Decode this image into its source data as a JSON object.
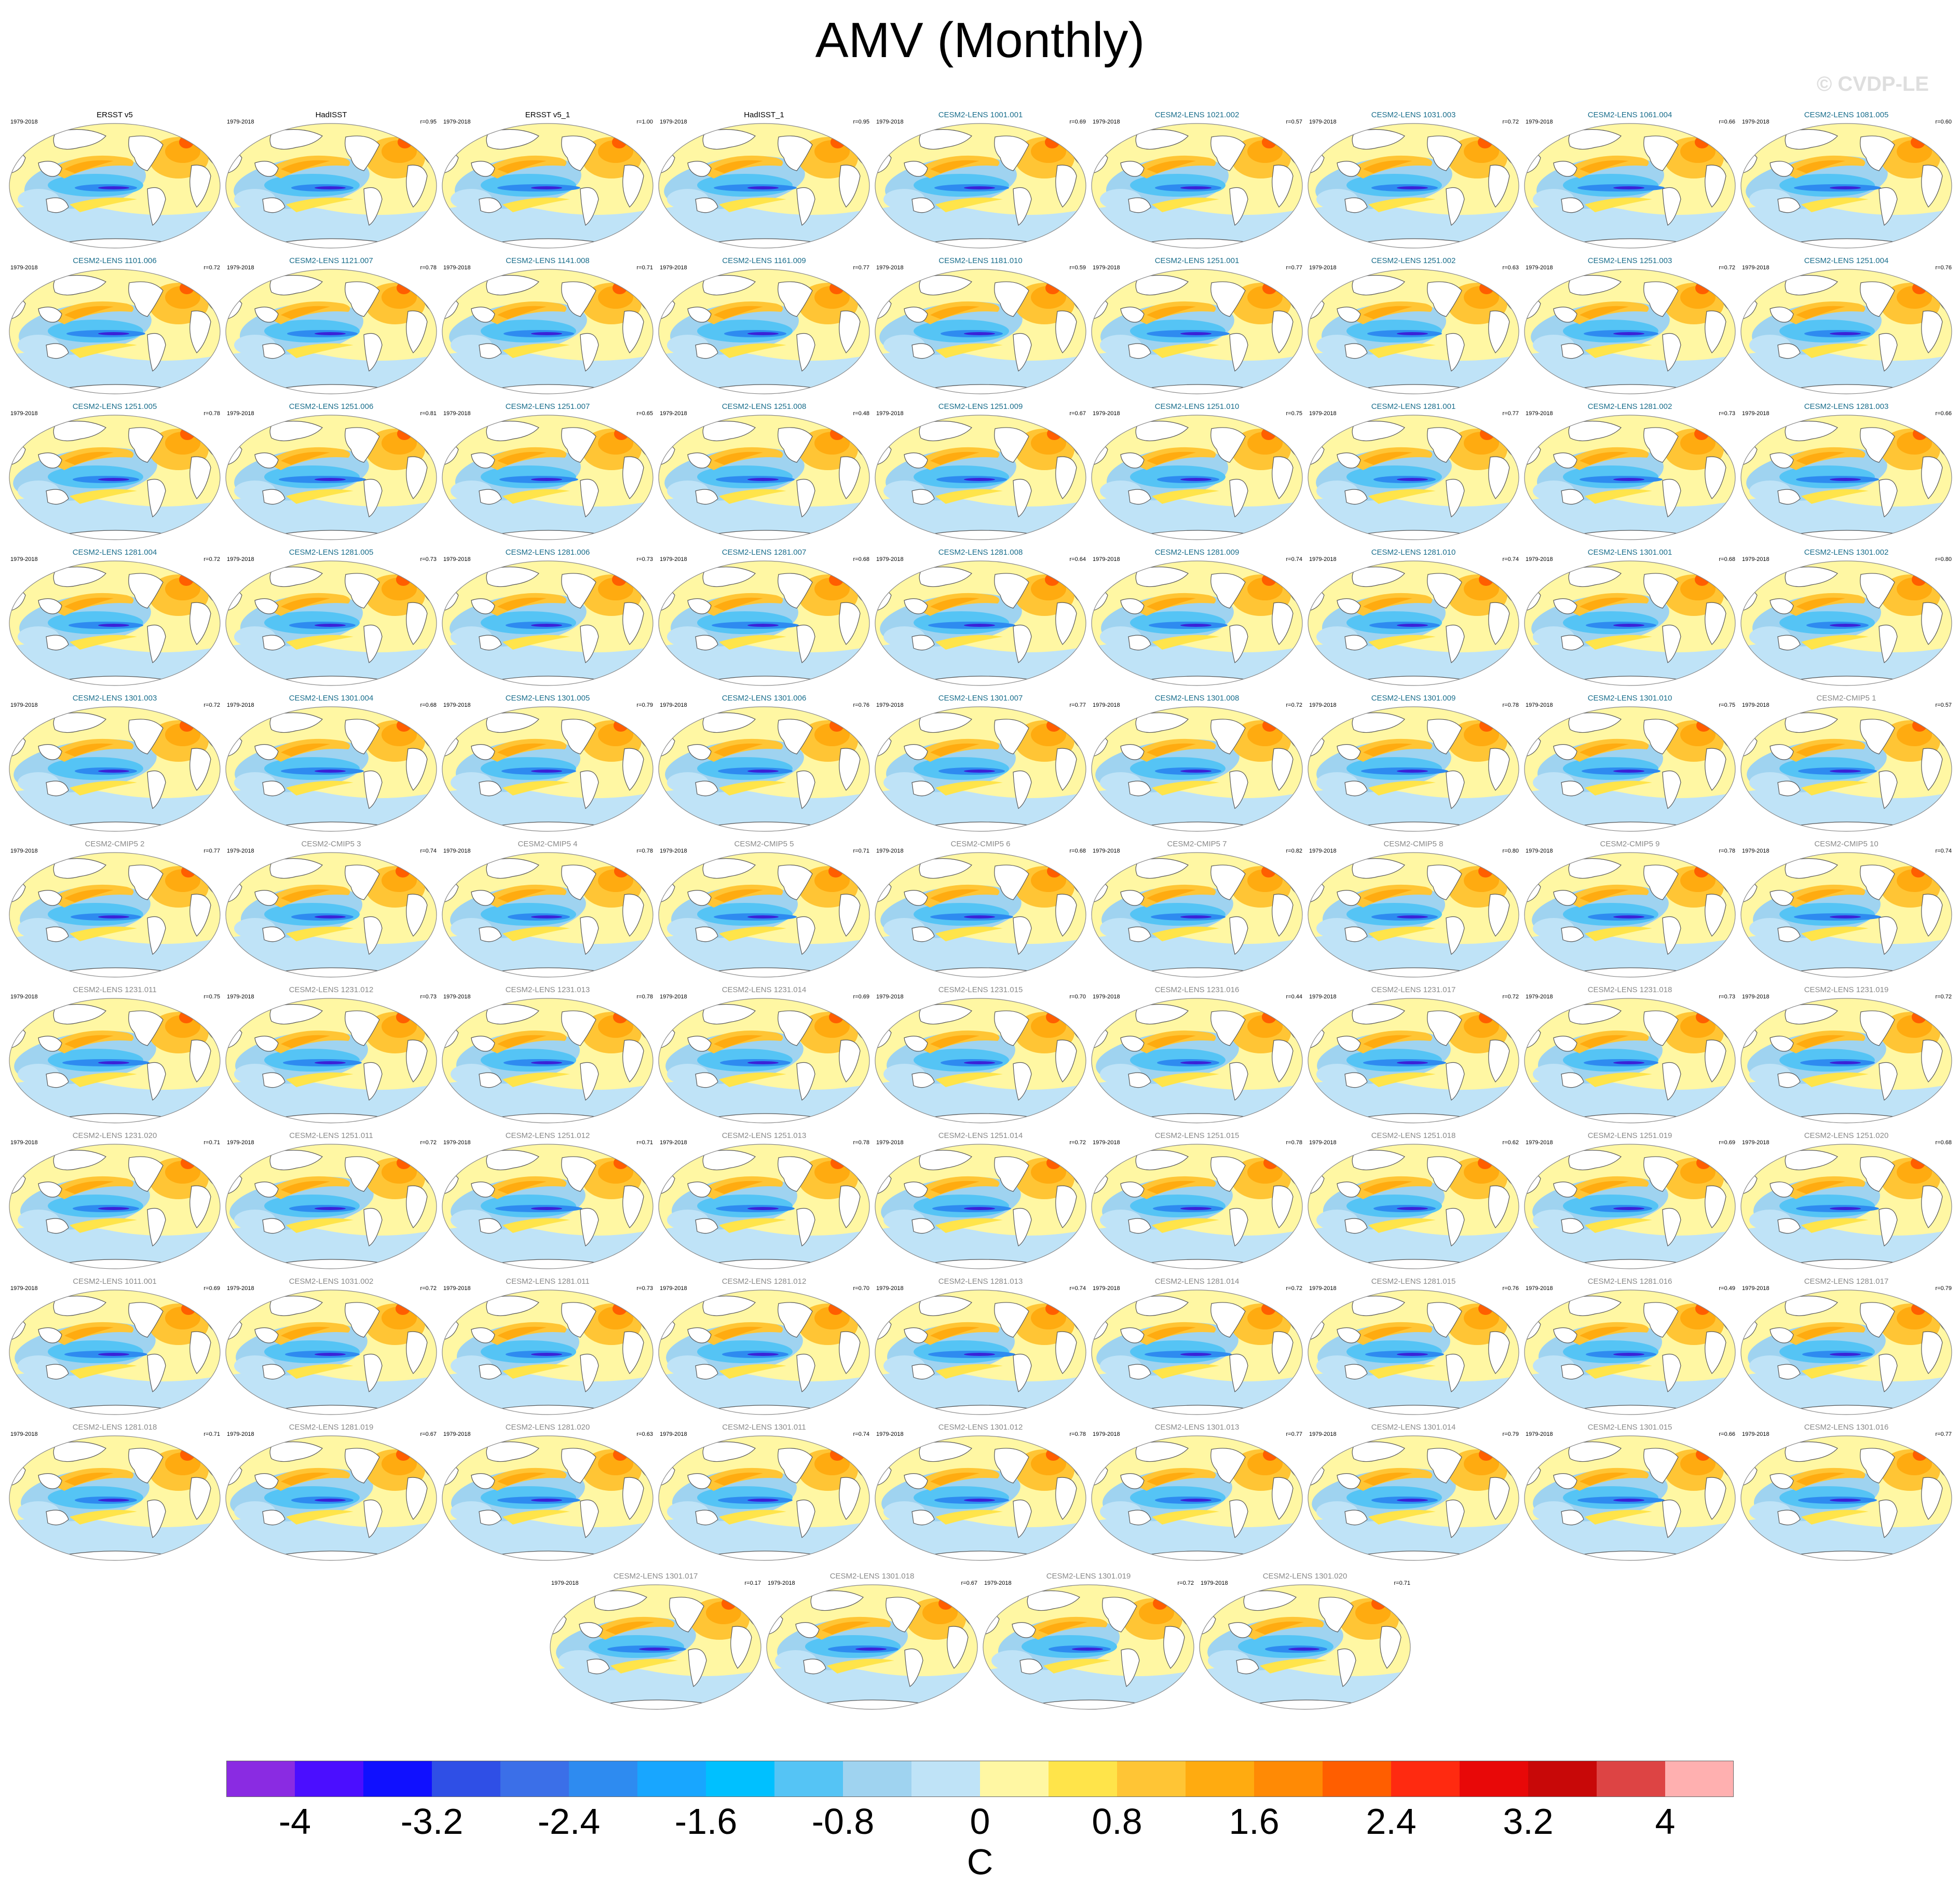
{
  "title": "AMV (Monthly)",
  "watermark": "© CVDP-LE",
  "period": "1979-2018",
  "colors": {
    "obs_title": "#000000",
    "model_title_group1": "#1a6e8c",
    "model_title_group2": "#8a8a8a",
    "land": "#ffffff",
    "coast": "#555555"
  },
  "panels": [
    {
      "name": "ERSST v5",
      "r": "",
      "group": "obs"
    },
    {
      "name": "HadISST",
      "r": "r=0.95",
      "group": "obs"
    },
    {
      "name": "ERSST v5_1",
      "r": "r=1.00",
      "group": "obs"
    },
    {
      "name": "HadISST_1",
      "r": "r=0.95",
      "group": "obs"
    },
    {
      "name": "CESM2-LENS 1001.001",
      "r": "r=0.69",
      "group": "m1"
    },
    {
      "name": "CESM2-LENS 1021.002",
      "r": "r=0.57",
      "group": "m1"
    },
    {
      "name": "CESM2-LENS 1031.003",
      "r": "r=0.72",
      "group": "m1"
    },
    {
      "name": "CESM2-LENS 1061.004",
      "r": "r=0.66",
      "group": "m1"
    },
    {
      "name": "CESM2-LENS 1081.005",
      "r": "r=0.60",
      "group": "m1"
    },
    {
      "name": "CESM2-LENS 1101.006",
      "r": "r=0.72",
      "group": "m1"
    },
    {
      "name": "CESM2-LENS 1121.007",
      "r": "r=0.78",
      "group": "m1"
    },
    {
      "name": "CESM2-LENS 1141.008",
      "r": "r=0.71",
      "group": "m1"
    },
    {
      "name": "CESM2-LENS 1161.009",
      "r": "r=0.77",
      "group": "m1"
    },
    {
      "name": "CESM2-LENS 1181.010",
      "r": "r=0.59",
      "group": "m1"
    },
    {
      "name": "CESM2-LENS 1251.001",
      "r": "r=0.77",
      "group": "m1"
    },
    {
      "name": "CESM2-LENS 1251.002",
      "r": "r=0.63",
      "group": "m1"
    },
    {
      "name": "CESM2-LENS 1251.003",
      "r": "r=0.72",
      "group": "m1"
    },
    {
      "name": "CESM2-LENS 1251.004",
      "r": "r=0.76",
      "group": "m1"
    },
    {
      "name": "CESM2-LENS 1251.005",
      "r": "r=0.78",
      "group": "m1"
    },
    {
      "name": "CESM2-LENS 1251.006",
      "r": "r=0.81",
      "group": "m1"
    },
    {
      "name": "CESM2-LENS 1251.007",
      "r": "r=0.65",
      "group": "m1"
    },
    {
      "name": "CESM2-LENS 1251.008",
      "r": "r=0.48",
      "group": "m1"
    },
    {
      "name": "CESM2-LENS 1251.009",
      "r": "r=0.67",
      "group": "m1"
    },
    {
      "name": "CESM2-LENS 1251.010",
      "r": "r=0.75",
      "group": "m1"
    },
    {
      "name": "CESM2-LENS 1281.001",
      "r": "r=0.77",
      "group": "m1"
    },
    {
      "name": "CESM2-LENS 1281.002",
      "r": "r=0.73",
      "group": "m1"
    },
    {
      "name": "CESM2-LENS 1281.003",
      "r": "r=0.66",
      "group": "m1"
    },
    {
      "name": "CESM2-LENS 1281.004",
      "r": "r=0.72",
      "group": "m1"
    },
    {
      "name": "CESM2-LENS 1281.005",
      "r": "r=0.73",
      "group": "m1"
    },
    {
      "name": "CESM2-LENS 1281.006",
      "r": "r=0.73",
      "group": "m1"
    },
    {
      "name": "CESM2-LENS 1281.007",
      "r": "r=0.68",
      "group": "m1"
    },
    {
      "name": "CESM2-LENS 1281.008",
      "r": "r=0.64",
      "group": "m1"
    },
    {
      "name": "CESM2-LENS 1281.009",
      "r": "r=0.74",
      "group": "m1"
    },
    {
      "name": "CESM2-LENS 1281.010",
      "r": "r=0.74",
      "group": "m1"
    },
    {
      "name": "CESM2-LENS 1301.001",
      "r": "r=0.68",
      "group": "m1"
    },
    {
      "name": "CESM2-LENS 1301.002",
      "r": "r=0.80",
      "group": "m1"
    },
    {
      "name": "CESM2-LENS 1301.003",
      "r": "r=0.72",
      "group": "m1"
    },
    {
      "name": "CESM2-LENS 1301.004",
      "r": "r=0.68",
      "group": "m1"
    },
    {
      "name": "CESM2-LENS 1301.005",
      "r": "r=0.79",
      "group": "m1"
    },
    {
      "name": "CESM2-LENS 1301.006",
      "r": "r=0.76",
      "group": "m1"
    },
    {
      "name": "CESM2-LENS 1301.007",
      "r": "r=0.77",
      "group": "m1"
    },
    {
      "name": "CESM2-LENS 1301.008",
      "r": "r=0.72",
      "group": "m1"
    },
    {
      "name": "CESM2-LENS 1301.009",
      "r": "r=0.78",
      "group": "m1"
    },
    {
      "name": "CESM2-LENS 1301.010",
      "r": "r=0.75",
      "group": "m1"
    },
    {
      "name": "CESM2-CMIP5 1",
      "r": "r=0.57",
      "group": "m2"
    },
    {
      "name": "CESM2-CMIP5 2",
      "r": "r=0.77",
      "group": "m2"
    },
    {
      "name": "CESM2-CMIP5 3",
      "r": "r=0.74",
      "group": "m2"
    },
    {
      "name": "CESM2-CMIP5 4",
      "r": "r=0.78",
      "group": "m2"
    },
    {
      "name": "CESM2-CMIP5 5",
      "r": "r=0.71",
      "group": "m2"
    },
    {
      "name": "CESM2-CMIP5 6",
      "r": "r=0.68",
      "group": "m2"
    },
    {
      "name": "CESM2-CMIP5 7",
      "r": "r=0.82",
      "group": "m2"
    },
    {
      "name": "CESM2-CMIP5 8",
      "r": "r=0.80",
      "group": "m2"
    },
    {
      "name": "CESM2-CMIP5 9",
      "r": "r=0.78",
      "group": "m2"
    },
    {
      "name": "CESM2-CMIP5 10",
      "r": "r=0.74",
      "group": "m2"
    },
    {
      "name": "CESM2-LENS 1231.011",
      "r": "r=0.75",
      "group": "m2"
    },
    {
      "name": "CESM2-LENS 1231.012",
      "r": "r=0.73",
      "group": "m2"
    },
    {
      "name": "CESM2-LENS 1231.013",
      "r": "r=0.78",
      "group": "m2"
    },
    {
      "name": "CESM2-LENS 1231.014",
      "r": "r=0.69",
      "group": "m2"
    },
    {
      "name": "CESM2-LENS 1231.015",
      "r": "r=0.70",
      "group": "m2"
    },
    {
      "name": "CESM2-LENS 1231.016",
      "r": "r=0.44",
      "group": "m2"
    },
    {
      "name": "CESM2-LENS 1231.017",
      "r": "r=0.72",
      "group": "m2"
    },
    {
      "name": "CESM2-LENS 1231.018",
      "r": "r=0.73",
      "group": "m2"
    },
    {
      "name": "CESM2-LENS 1231.019",
      "r": "r=0.72",
      "group": "m2"
    },
    {
      "name": "CESM2-LENS 1231.020",
      "r": "r=0.71",
      "group": "m2"
    },
    {
      "name": "CESM2-LENS 1251.011",
      "r": "r=0.72",
      "group": "m2"
    },
    {
      "name": "CESM2-LENS 1251.012",
      "r": "r=0.71",
      "group": "m2"
    },
    {
      "name": "CESM2-LENS 1251.013",
      "r": "r=0.78",
      "group": "m2"
    },
    {
      "name": "CESM2-LENS 1251.014",
      "r": "r=0.72",
      "group": "m2"
    },
    {
      "name": "CESM2-LENS 1251.015",
      "r": "r=0.78",
      "group": "m2"
    },
    {
      "name": "CESM2-LENS 1251.018",
      "r": "r=0.62",
      "group": "m2"
    },
    {
      "name": "CESM2-LENS 1251.019",
      "r": "r=0.69",
      "group": "m2"
    },
    {
      "name": "CESM2-LENS 1251.020",
      "r": "r=0.68",
      "group": "m2"
    },
    {
      "name": "CESM2-LENS 1011.001",
      "r": "r=0.69",
      "group": "m2"
    },
    {
      "name": "CESM2-LENS 1031.002",
      "r": "r=0.72",
      "group": "m2"
    },
    {
      "name": "CESM2-LENS 1281.011",
      "r": "r=0.73",
      "group": "m2"
    },
    {
      "name": "CESM2-LENS 1281.012",
      "r": "r=0.70",
      "group": "m2"
    },
    {
      "name": "CESM2-LENS 1281.013",
      "r": "r=0.74",
      "group": "m2"
    },
    {
      "name": "CESM2-LENS 1281.014",
      "r": "r=0.72",
      "group": "m2"
    },
    {
      "name": "CESM2-LENS 1281.015",
      "r": "r=0.76",
      "group": "m2"
    },
    {
      "name": "CESM2-LENS 1281.016",
      "r": "r=0.49",
      "group": "m2"
    },
    {
      "name": "CESM2-LENS 1281.017",
      "r": "r=0.79",
      "group": "m2"
    },
    {
      "name": "CESM2-LENS 1281.018",
      "r": "r=0.71",
      "group": "m2"
    },
    {
      "name": "CESM2-LENS 1281.019",
      "r": "r=0.67",
      "group": "m2"
    },
    {
      "name": "CESM2-LENS 1281.020",
      "r": "r=0.63",
      "group": "m2"
    },
    {
      "name": "CESM2-LENS 1301.011",
      "r": "r=0.74",
      "group": "m2"
    },
    {
      "name": "CESM2-LENS 1301.012",
      "r": "r=0.78",
      "group": "m2"
    },
    {
      "name": "CESM2-LENS 1301.013",
      "r": "r=0.77",
      "group": "m2"
    },
    {
      "name": "CESM2-LENS 1301.014",
      "r": "r=0.79",
      "group": "m2"
    },
    {
      "name": "CESM2-LENS 1301.015",
      "r": "r=0.66",
      "group": "m2"
    },
    {
      "name": "CESM2-LENS 1301.016",
      "r": "r=0.77",
      "group": "m2"
    },
    {
      "name": "CESM2-LENS 1301.017",
      "r": "r=0.17",
      "group": "m2"
    },
    {
      "name": "CESM2-LENS 1301.018",
      "r": "r=0.67",
      "group": "m2"
    },
    {
      "name": "CESM2-LENS 1301.019",
      "r": "r=0.72",
      "group": "m2"
    },
    {
      "name": "CESM2-LENS 1301.020",
      "r": "r=0.71",
      "group": "m2"
    }
  ],
  "colorbar": {
    "units": "C",
    "colors": [
      "#8a2be2",
      "#4b0eff",
      "#1010ff",
      "#2f4fe6",
      "#3b6fe8",
      "#2e8bf0",
      "#18a6ff",
      "#00c0ff",
      "#55c4f5",
      "#9fd3f0",
      "#bfe3f7",
      "#fff7a3",
      "#ffe44a",
      "#ffc535",
      "#ffab10",
      "#ff8a05",
      "#ff5e00",
      "#ff2a10",
      "#e80808",
      "#c80808",
      "#dd4444",
      "#ffb0b0"
    ],
    "tick_labels": [
      "-4",
      "-3.2",
      "-2.4",
      "-1.6",
      "-0.8",
      "0",
      "0.8",
      "1.6",
      "2.4",
      "3.2",
      "4"
    ],
    "tick_values": [
      -4,
      -3.2,
      -2.4,
      -1.6,
      -0.8,
      0,
      0.8,
      1.6,
      2.4,
      3.2,
      4
    ],
    "range": [
      -4.4,
      4.4
    ]
  }
}
